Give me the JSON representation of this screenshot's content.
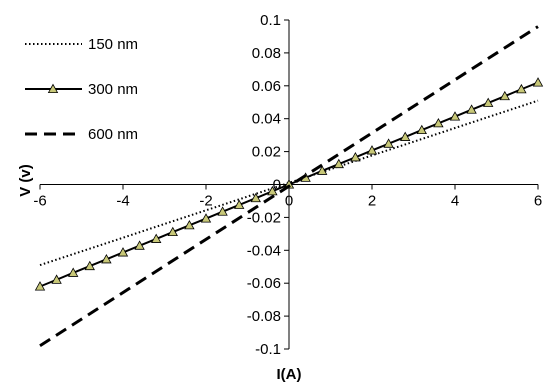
{
  "chart_data": {
    "type": "line",
    "title": "",
    "xlabel": "I(A)",
    "ylabel": "V (v)",
    "xlim": [
      -6,
      6
    ],
    "ylim": [
      -0.1,
      0.1
    ],
    "x_ticks": [
      -6,
      -4,
      -2,
      0,
      2,
      4,
      6
    ],
    "x_tick_labels": [
      "-6",
      "-4",
      "-2",
      "0",
      "2",
      "4",
      "6"
    ],
    "y_ticks": [
      -0.1,
      -0.08,
      -0.06,
      -0.04,
      -0.02,
      0,
      0.02,
      0.04,
      0.06,
      0.08,
      0.1
    ],
    "y_tick_labels": [
      "-0.1",
      "-0.08",
      "-0.06",
      "-0.04",
      "-0.02",
      "0",
      "0.02",
      "0.04",
      "0.06",
      "0.08",
      "0.1"
    ],
    "grid": false,
    "legend_position": "top-left",
    "series": [
      {
        "name": "150 nm",
        "style": "dotted",
        "x": [
          -6,
          6
        ],
        "y": [
          -0.049,
          0.051
        ]
      },
      {
        "name": "300 nm",
        "style": "solid-triangle-markers",
        "marker_color": "#c8c878",
        "x": [
          -6,
          -5.6,
          -5.2,
          -4.8,
          -4.4,
          -4,
          -3.6,
          -3.2,
          -2.8,
          -2.4,
          -2,
          -1.6,
          -1.2,
          -0.8,
          -0.4,
          0,
          0.4,
          0.8,
          1.2,
          1.6,
          2,
          2.4,
          2.8,
          3.2,
          3.6,
          4,
          4.4,
          4.8,
          5.2,
          5.6,
          6
        ],
        "y": [
          -0.062,
          -0.0579,
          -0.0537,
          -0.0496,
          -0.0455,
          -0.0413,
          -0.0372,
          -0.0331,
          -0.0289,
          -0.0248,
          -0.0207,
          -0.0165,
          -0.0124,
          -0.0083,
          -0.0041,
          0,
          0.0041,
          0.0083,
          0.0124,
          0.0165,
          0.0207,
          0.0248,
          0.0289,
          0.0331,
          0.0372,
          0.0413,
          0.0455,
          0.0496,
          0.0537,
          0.0579,
          0.062
        ]
      },
      {
        "name": "600 nm",
        "style": "dashed",
        "x": [
          -6,
          6
        ],
        "y": [
          -0.098,
          0.096
        ]
      }
    ]
  }
}
